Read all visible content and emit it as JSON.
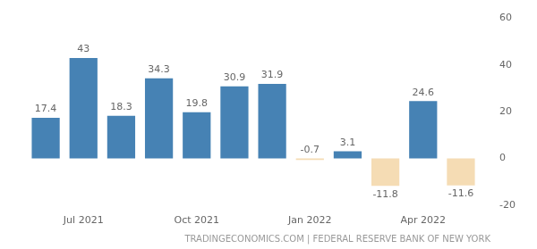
{
  "chart_data": {
    "type": "bar",
    "categories": [
      null,
      "Jul 2021",
      null,
      null,
      "Oct 2021",
      null,
      null,
      "Jan 2022",
      null,
      null,
      "Apr 2022",
      null
    ],
    "values": [
      17.4,
      43,
      18.3,
      34.3,
      19.8,
      30.9,
      31.9,
      -0.7,
      3.1,
      -11.8,
      24.6,
      -11.6
    ],
    "colors": [
      "#4682b4",
      "#4682b4",
      "#4682b4",
      "#4682b4",
      "#4682b4",
      "#4682b4",
      "#4682b4",
      "#f5dcb4",
      "#4682b4",
      "#f5dcb4",
      "#4682b4",
      "#f5dcb4"
    ],
    "ylim": [
      -20,
      60
    ],
    "yticks": [
      -20,
      0,
      20,
      40,
      60
    ],
    "grid": false,
    "data_labels": true,
    "source": "TRADINGECONOMICS.COM | FEDERAL RESERVE BANK OF NEW YORK"
  }
}
